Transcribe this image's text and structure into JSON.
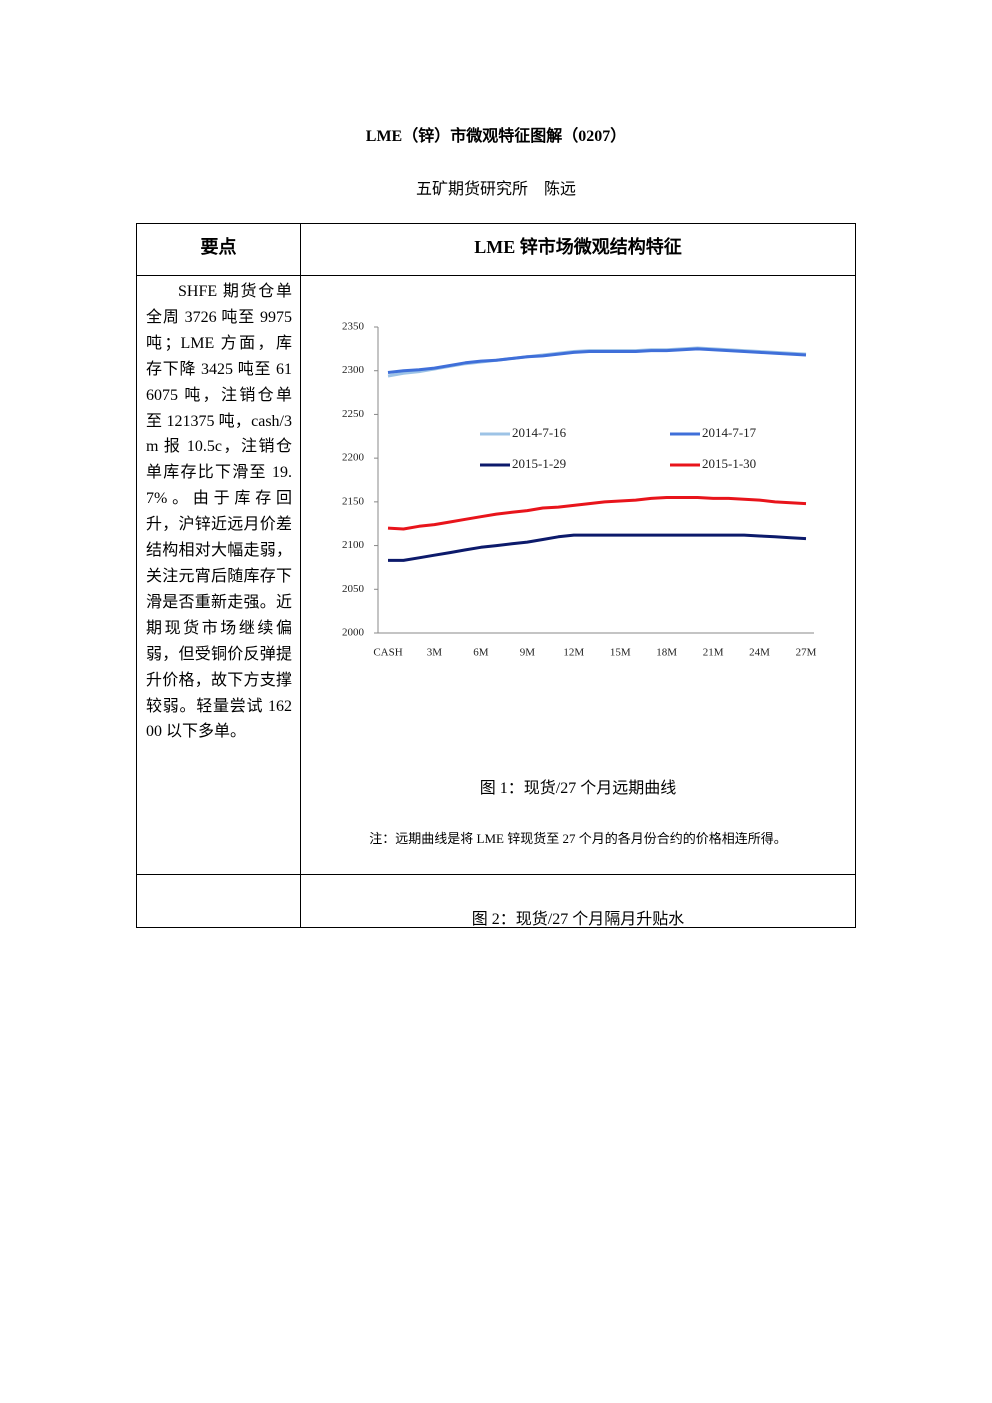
{
  "header": {
    "title": "LME（锌）市微观特征图解（0207）",
    "author": "五矿期货研究所　陈远"
  },
  "table": {
    "headers": [
      "要点",
      "LME 锌市场微观结构特征"
    ],
    "rows": [
      [
        "SHFE 期货仓单全周 3726 吨至 9975 吨；LME 方面，库存下降 3425 吨至 616075 吨，注销仓单至 121375 吨，cash/3m 报 10.5c，注销仓单库存比下滑至 19.7%。由于库存回升，沪锌近远月价差结构相对大幅走弱，关注元宵后随库存下滑是否重新走强。近期现货市场继续偏弱，但受铜价反弹提升价格，故下方支撑较弱。轻量尝试 16200 以下多单。"
      ]
    ]
  },
  "figure_1": {
    "caption": "图 1：现货/27 个月远期曲线",
    "note": "注：远期曲线是将 LME 锌现货至 27 个月的各月份合约的价格相连所得。"
  },
  "figure_2": {
    "caption": "图 2：现货/27 个月隔月升贴水"
  },
  "chart_data": {
    "type": "line",
    "categories": [
      "CASH",
      null,
      null,
      "3M",
      null,
      null,
      "6M",
      null,
      null,
      "9M",
      null,
      null,
      "12M",
      null,
      null,
      "15M",
      null,
      null,
      "18M",
      null,
      null,
      "21M",
      null,
      null,
      "24M",
      null,
      null,
      "27M"
    ],
    "series": [
      {
        "name": "2014-7-16",
        "color": "#9dc3e6",
        "values": [
          2294,
          2297,
          2299,
          2302,
          2305,
          2308,
          2310,
          2312,
          2314,
          2316,
          2318,
          2320,
          2322,
          2323,
          2323,
          2323,
          2323,
          2324,
          2324,
          2325,
          2326,
          2325,
          2324,
          2323,
          2322,
          2321,
          2320,
          2319
        ]
      },
      {
        "name": "2014-7-17",
        "color": "#3f6fd9",
        "values": [
          2298,
          2300,
          2301,
          2303,
          2306,
          2309,
          2311,
          2312,
          2314,
          2316,
          2317,
          2319,
          2321,
          2322,
          2322,
          2322,
          2322,
          2323,
          2323,
          2324,
          2325,
          2324,
          2323,
          2322,
          2321,
          2320,
          2319,
          2318
        ]
      },
      {
        "name": "2015-1-29",
        "color": "#0c1a6b",
        "values": [
          2083,
          2083,
          2086,
          2089,
          2092,
          2095,
          2098,
          2100,
          2102,
          2104,
          2107,
          2110,
          2112,
          2112,
          2112,
          2112,
          2112,
          2112,
          2112,
          2112,
          2112,
          2112,
          2112,
          2112,
          2111,
          2110,
          2109,
          2108
        ]
      },
      {
        "name": "2015-1-30",
        "color": "#e8141b",
        "values": [
          2120,
          2119,
          2122,
          2124,
          2127,
          2130,
          2133,
          2136,
          2138,
          2140,
          2143,
          2144,
          2146,
          2148,
          2150,
          2151,
          2152,
          2154,
          2155,
          2155,
          2155,
          2154,
          2154,
          2153,
          2152,
          2150,
          2149,
          2148
        ]
      }
    ],
    "ylim": [
      2000,
      2350
    ],
    "yticks": [
      2000,
      2050,
      2100,
      2150,
      2200,
      2250,
      2300,
      2350
    ]
  }
}
